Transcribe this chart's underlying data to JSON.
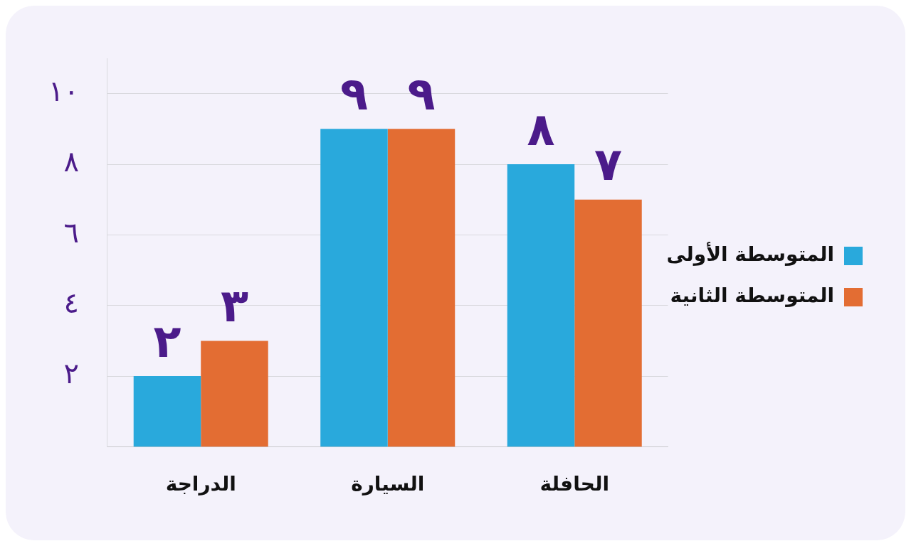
{
  "chart_data": {
    "type": "bar",
    "categories": [
      "الدراجة",
      "السيارة",
      "الحافلة"
    ],
    "series": [
      {
        "name": "المتوسطة الأولى",
        "color": "#29a9dc",
        "values": [
          2,
          9,
          8
        ],
        "value_labels": [
          "٢",
          "٩",
          "٨"
        ]
      },
      {
        "name": "المتوسطة الثانية",
        "color": "#e36d33",
        "values": [
          3,
          9,
          7
        ],
        "value_labels": [
          "٣",
          "٩",
          "٧"
        ]
      }
    ],
    "ylim": [
      0,
      11
    ],
    "yticks": [
      {
        "value": 2,
        "label": "٢"
      },
      {
        "value": 4,
        "label": "٤"
      },
      {
        "value": 6,
        "label": "٦"
      },
      {
        "value": 8,
        "label": "٨"
      },
      {
        "value": 10,
        "label": "١٠"
      }
    ],
    "grid": "y",
    "legend": "right"
  }
}
